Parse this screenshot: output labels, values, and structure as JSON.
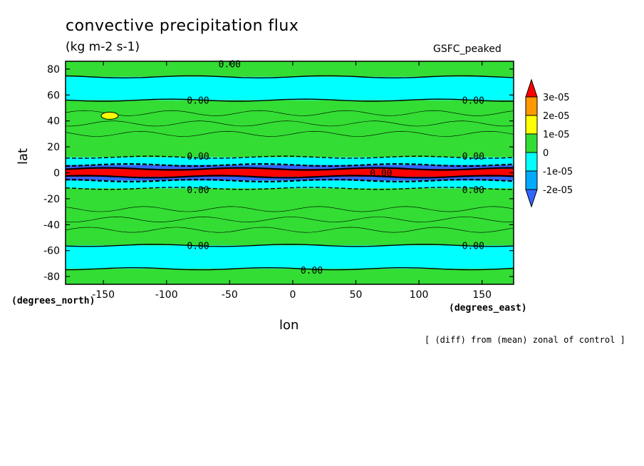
{
  "chart_data": {
    "type": "heatmap",
    "title": "convective precipitation flux",
    "subtitle": "(kg m-2 s-1)",
    "case_label": "GSFC_peaked",
    "xlabel": "lon",
    "ylabel": "lat",
    "x_units": "(degrees_east)",
    "y_units": "(degrees_north)",
    "note": "[ (diff) from (mean) zonal of control ]",
    "xlim": [
      -180,
      175
    ],
    "ylim": [
      -86,
      86
    ],
    "x_ticks": [
      -150,
      -100,
      -50,
      0,
      50,
      100,
      150
    ],
    "x_tick_labels": [
      "-150",
      "-100",
      "-50",
      "0",
      "50",
      "100",
      "150"
    ],
    "y_ticks": [
      80,
      60,
      40,
      20,
      0,
      -20,
      -40,
      -60,
      -80
    ],
    "y_tick_labels": [
      "80",
      "60",
      "40",
      "20",
      "0",
      "-20",
      "-40",
      "-60",
      "-80"
    ],
    "colorbar": {
      "levels": [
        "3e-05",
        "2e-05",
        "1e-05",
        "0",
        "-1e-05",
        "-2e-05"
      ],
      "bins": [
        {
          "label": ">3e-05",
          "color": "#ff0000"
        },
        {
          "label": "2e-05 to 3e-05",
          "color": "#ff9900"
        },
        {
          "label": "1e-05 to 2e-05",
          "color": "#ffff00"
        },
        {
          "label": "0 to 1e-05",
          "color": "#33dd33"
        },
        {
          "label": "-1e-05 to 0",
          "color": "#00ffff"
        },
        {
          "label": "-2e-05 to -1e-05",
          "color": "#00aaff"
        },
        {
          "label": "<-2e-05",
          "color": "#3366ff"
        }
      ]
    },
    "bands": [
      {
        "lat": [
          74,
          86
        ],
        "bin": "0 to 1e-05"
      },
      {
        "lat": [
          56,
          74
        ],
        "bin": "-1e-05 to 0"
      },
      {
        "lat": [
          12,
          56
        ],
        "bin": "0 to 1e-05"
      },
      {
        "lat": [
          6,
          12
        ],
        "bin": "-1e-05 to 0"
      },
      {
        "lat": [
          3,
          6
        ],
        "bin": "<-2e-05"
      },
      {
        "lat": [
          -3,
          3
        ],
        "bin": ">3e-05"
      },
      {
        "lat": [
          -6,
          -3
        ],
        "bin": "<-2e-05"
      },
      {
        "lat": [
          -12,
          -6
        ],
        "bin": "-1e-05 to 0"
      },
      {
        "lat": [
          -56,
          -12
        ],
        "bin": "0 to 1e-05"
      },
      {
        "lat": [
          -74,
          -56
        ],
        "bin": "-1e-05 to 0"
      },
      {
        "lat": [
          -86,
          -74
        ],
        "bin": "0 to 1e-05"
      }
    ],
    "contour_labels": [
      {
        "lon": -50,
        "lat": 84,
        "text": "0.00"
      },
      {
        "lon": -75,
        "lat": 56,
        "text": "0.00"
      },
      {
        "lon": 143,
        "lat": 56,
        "text": "0.00"
      },
      {
        "lon": -75,
        "lat": 13,
        "text": "0.00"
      },
      {
        "lon": 143,
        "lat": 13,
        "text": "0.00"
      },
      {
        "lon": -75,
        "lat": -13,
        "text": "0.00"
      },
      {
        "lon": 143,
        "lat": -13,
        "text": "0.00"
      },
      {
        "lon": -75,
        "lat": -56,
        "text": "0.00"
      },
      {
        "lon": 143,
        "lat": -56,
        "text": "0.00"
      },
      {
        "lon": 15,
        "lat": -75,
        "text": "0.00"
      },
      {
        "lon": 70,
        "lat": 0,
        "text": "0.00"
      }
    ]
  }
}
